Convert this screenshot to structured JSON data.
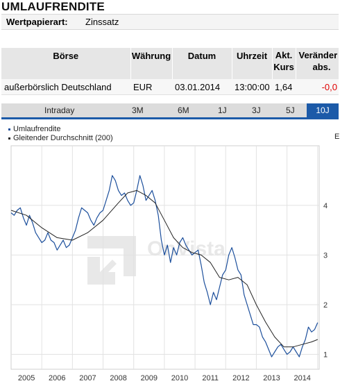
{
  "page": {
    "title": "UMLAUFRENDITE"
  },
  "info": {
    "label": "Wertpapierart:",
    "value": "Zinssatz"
  },
  "quote_table": {
    "headers": [
      "Börse",
      "Währung",
      "Datum",
      "Uhrzeit",
      "Akt.",
      "Kurs",
      "Veränder",
      "abs."
    ],
    "row": {
      "exchange": "außerbörslich Deutschland",
      "currency": "EUR",
      "date": "03.01.2014",
      "time": "13:00:00",
      "price": "1,64",
      "change": "-0,0"
    }
  },
  "tabs": [
    "Intraday",
    "3M",
    "6M",
    "1J",
    "3J",
    "5J",
    "10J"
  ],
  "active_tab": "10J",
  "colors": {
    "series": "#1c4f9c",
    "average": "#222222",
    "accent": "#1c5aa8",
    "negative": "#e00000"
  },
  "watermark": "OnVista",
  "chart_data": {
    "type": "line",
    "legend": [
      "Umlaufrendite",
      "Gleitender Durchschnitt (200)"
    ],
    "ylim": [
      0.7,
      5.2
    ],
    "yticks": [
      "1",
      "2",
      "3",
      "4"
    ],
    "y_axis_label_cut": "E",
    "xlim": [
      2004.0,
      2014.05
    ],
    "xticks": [
      "2005",
      "2006",
      "2007",
      "2008",
      "2009",
      "2010",
      "2011",
      "2012",
      "2013",
      "2014"
    ],
    "series": [
      {
        "name": "Umlaufrendite",
        "x": [
          2004.0,
          2004.1,
          2004.2,
          2004.3,
          2004.4,
          2004.5,
          2004.6,
          2004.7,
          2004.8,
          2004.9,
          2005.0,
          2005.1,
          2005.2,
          2005.3,
          2005.4,
          2005.5,
          2005.6,
          2005.7,
          2005.8,
          2005.9,
          2006.0,
          2006.1,
          2006.2,
          2006.3,
          2006.4,
          2006.5,
          2006.6,
          2006.7,
          2006.8,
          2006.9,
          2007.0,
          2007.1,
          2007.2,
          2007.3,
          2007.4,
          2007.5,
          2007.6,
          2007.7,
          2007.8,
          2007.9,
          2008.0,
          2008.1,
          2008.2,
          2008.3,
          2008.4,
          2008.5,
          2008.6,
          2008.7,
          2008.8,
          2008.9,
          2009.0,
          2009.1,
          2009.2,
          2009.3,
          2009.4,
          2009.5,
          2009.6,
          2009.7,
          2009.8,
          2009.9,
          2010.0,
          2010.1,
          2010.2,
          2010.3,
          2010.4,
          2010.5,
          2010.6,
          2010.7,
          2010.8,
          2010.9,
          2011.0,
          2011.1,
          2011.2,
          2011.3,
          2011.4,
          2011.5,
          2011.6,
          2011.7,
          2011.8,
          2011.9,
          2012.0,
          2012.1,
          2012.2,
          2012.3,
          2012.4,
          2012.5,
          2012.6,
          2012.7,
          2012.8,
          2012.9,
          2013.0,
          2013.1,
          2013.2,
          2013.3,
          2013.4,
          2013.5,
          2013.6,
          2013.7,
          2013.8,
          2013.9,
          2014.0
        ],
        "values": [
          3.85,
          3.8,
          3.9,
          3.95,
          3.75,
          3.6,
          3.8,
          3.65,
          3.45,
          3.35,
          3.25,
          3.3,
          3.45,
          3.3,
          3.25,
          3.1,
          3.2,
          3.3,
          3.15,
          3.2,
          3.35,
          3.5,
          3.75,
          3.95,
          3.9,
          3.85,
          3.7,
          3.6,
          3.75,
          3.85,
          3.9,
          4.1,
          4.3,
          4.6,
          4.5,
          4.3,
          4.2,
          4.25,
          4.1,
          4.0,
          4.05,
          4.3,
          4.6,
          4.4,
          4.1,
          4.2,
          4.3,
          4.1,
          3.8,
          3.3,
          3.0,
          3.2,
          2.85,
          3.15,
          3.0,
          3.25,
          3.35,
          3.2,
          3.1,
          3.0,
          3.05,
          3.1,
          2.8,
          2.45,
          2.25,
          2.0,
          2.25,
          2.1,
          2.35,
          2.6,
          2.7,
          3.0,
          3.15,
          2.95,
          2.7,
          2.6,
          2.2,
          2.0,
          1.8,
          1.6,
          1.6,
          1.55,
          1.35,
          1.25,
          1.1,
          0.95,
          1.05,
          1.15,
          1.2,
          1.1,
          1.0,
          1.05,
          1.15,
          1.05,
          0.95,
          1.15,
          1.3,
          1.55,
          1.45,
          1.5,
          1.64
        ]
      },
      {
        "name": "Gleitender Durchschnitt (200)",
        "x": [
          2004.0,
          2004.5,
          2005.0,
          2005.5,
          2006.0,
          2006.5,
          2007.0,
          2007.5,
          2007.8,
          2008.1,
          2008.4,
          2008.7,
          2009.0,
          2009.3,
          2009.6,
          2009.9,
          2010.2,
          2010.5,
          2010.8,
          2011.1,
          2011.4,
          2011.7,
          2012.0,
          2012.3,
          2012.6,
          2012.9,
          2013.2,
          2013.5,
          2013.8,
          2014.0
        ],
        "values": [
          3.9,
          3.8,
          3.55,
          3.35,
          3.3,
          3.45,
          3.7,
          4.05,
          4.25,
          4.3,
          4.2,
          4.05,
          3.7,
          3.35,
          3.15,
          3.05,
          3.0,
          2.85,
          2.55,
          2.5,
          2.55,
          2.4,
          2.0,
          1.65,
          1.35,
          1.15,
          1.15,
          1.2,
          1.25,
          1.3
        ]
      }
    ]
  }
}
